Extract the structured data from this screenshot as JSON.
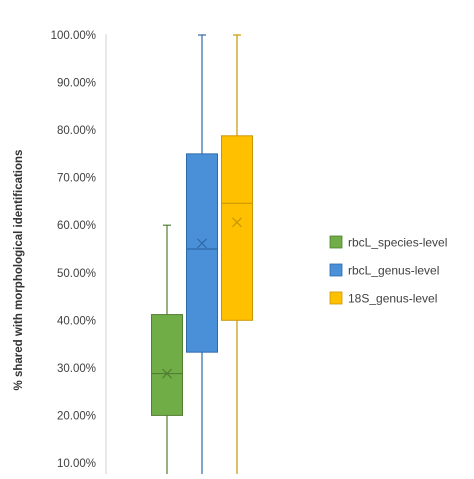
{
  "chart_data": {
    "type": "box",
    "ylabel": "% shared with morphological identifications",
    "ylim": [
      0,
      100
    ],
    "yticks": [
      "10.00%",
      "20.00%",
      "30.00%",
      "40.00%",
      "50.00%",
      "60.00%",
      "70.00%",
      "80.00%",
      "90.00%",
      "100.00%"
    ],
    "ytick_values": [
      10,
      20,
      30,
      40,
      50,
      60,
      70,
      80,
      90,
      100
    ],
    "grid": false,
    "legend_position": "right",
    "series": [
      {
        "name": "rbcL_species-level",
        "color": "#70AD47",
        "edge": "#507E32",
        "min": 0,
        "q1": 20,
        "median": 28.8,
        "q3": 41.2,
        "max": 60,
        "mean": 28.8
      },
      {
        "name": "rbcL_genus-level",
        "color": "#4A90D9",
        "edge": "#2E6AA8",
        "min": 0,
        "q1": 33.3,
        "median": 55,
        "q3": 75,
        "max": 100,
        "mean": 56.2
      },
      {
        "name": "18S_genus-level",
        "color": "#FFC000",
        "edge": "#C99700",
        "min": 0,
        "q1": 40,
        "median": 64.6,
        "q3": 78.8,
        "max": 100,
        "mean": 60.6
      }
    ]
  }
}
